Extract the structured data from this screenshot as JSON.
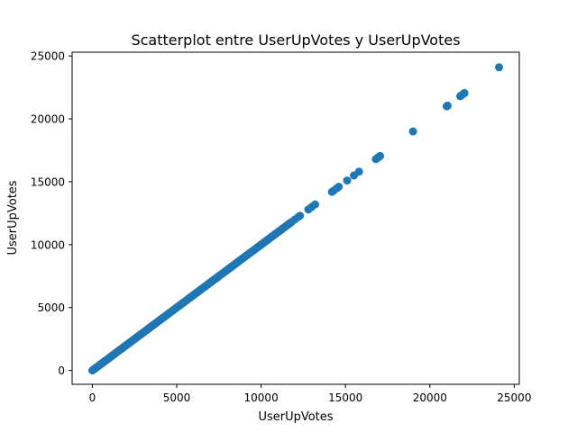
{
  "chart_data": {
    "type": "scatter",
    "title": "Scatterplot entre UserUpVotes y UserUpVotes",
    "xlabel": "UserUpVotes",
    "ylabel": "UserUpVotes",
    "xlim": [
      -1200,
      25300
    ],
    "ylim": [
      -1100,
      25300
    ],
    "xticks": [
      0,
      5000,
      10000,
      15000,
      20000,
      25000
    ],
    "yticks": [
      0,
      5000,
      10000,
      15000,
      20000,
      25000
    ],
    "marker_color": "#1f77b4",
    "dense_range": [
      0,
      11800
    ],
    "points": [
      [
        12000,
        12000
      ],
      [
        12200,
        12200
      ],
      [
        12300,
        12300
      ],
      [
        12800,
        12800
      ],
      [
        13000,
        13000
      ],
      [
        13200,
        13200
      ],
      [
        14200,
        14200
      ],
      [
        14300,
        14300
      ],
      [
        14500,
        14500
      ],
      [
        14600,
        14600
      ],
      [
        15100,
        15100
      ],
      [
        15500,
        15500
      ],
      [
        15800,
        15800
      ],
      [
        16800,
        16800
      ],
      [
        16900,
        16900
      ],
      [
        17000,
        17000
      ],
      [
        17050,
        17050
      ],
      [
        19000,
        19000
      ],
      [
        21000,
        21000
      ],
      [
        21050,
        21050
      ],
      [
        21800,
        21800
      ],
      [
        21900,
        21900
      ],
      [
        22000,
        22000
      ],
      [
        22050,
        22050
      ],
      [
        24100,
        24100
      ]
    ]
  }
}
